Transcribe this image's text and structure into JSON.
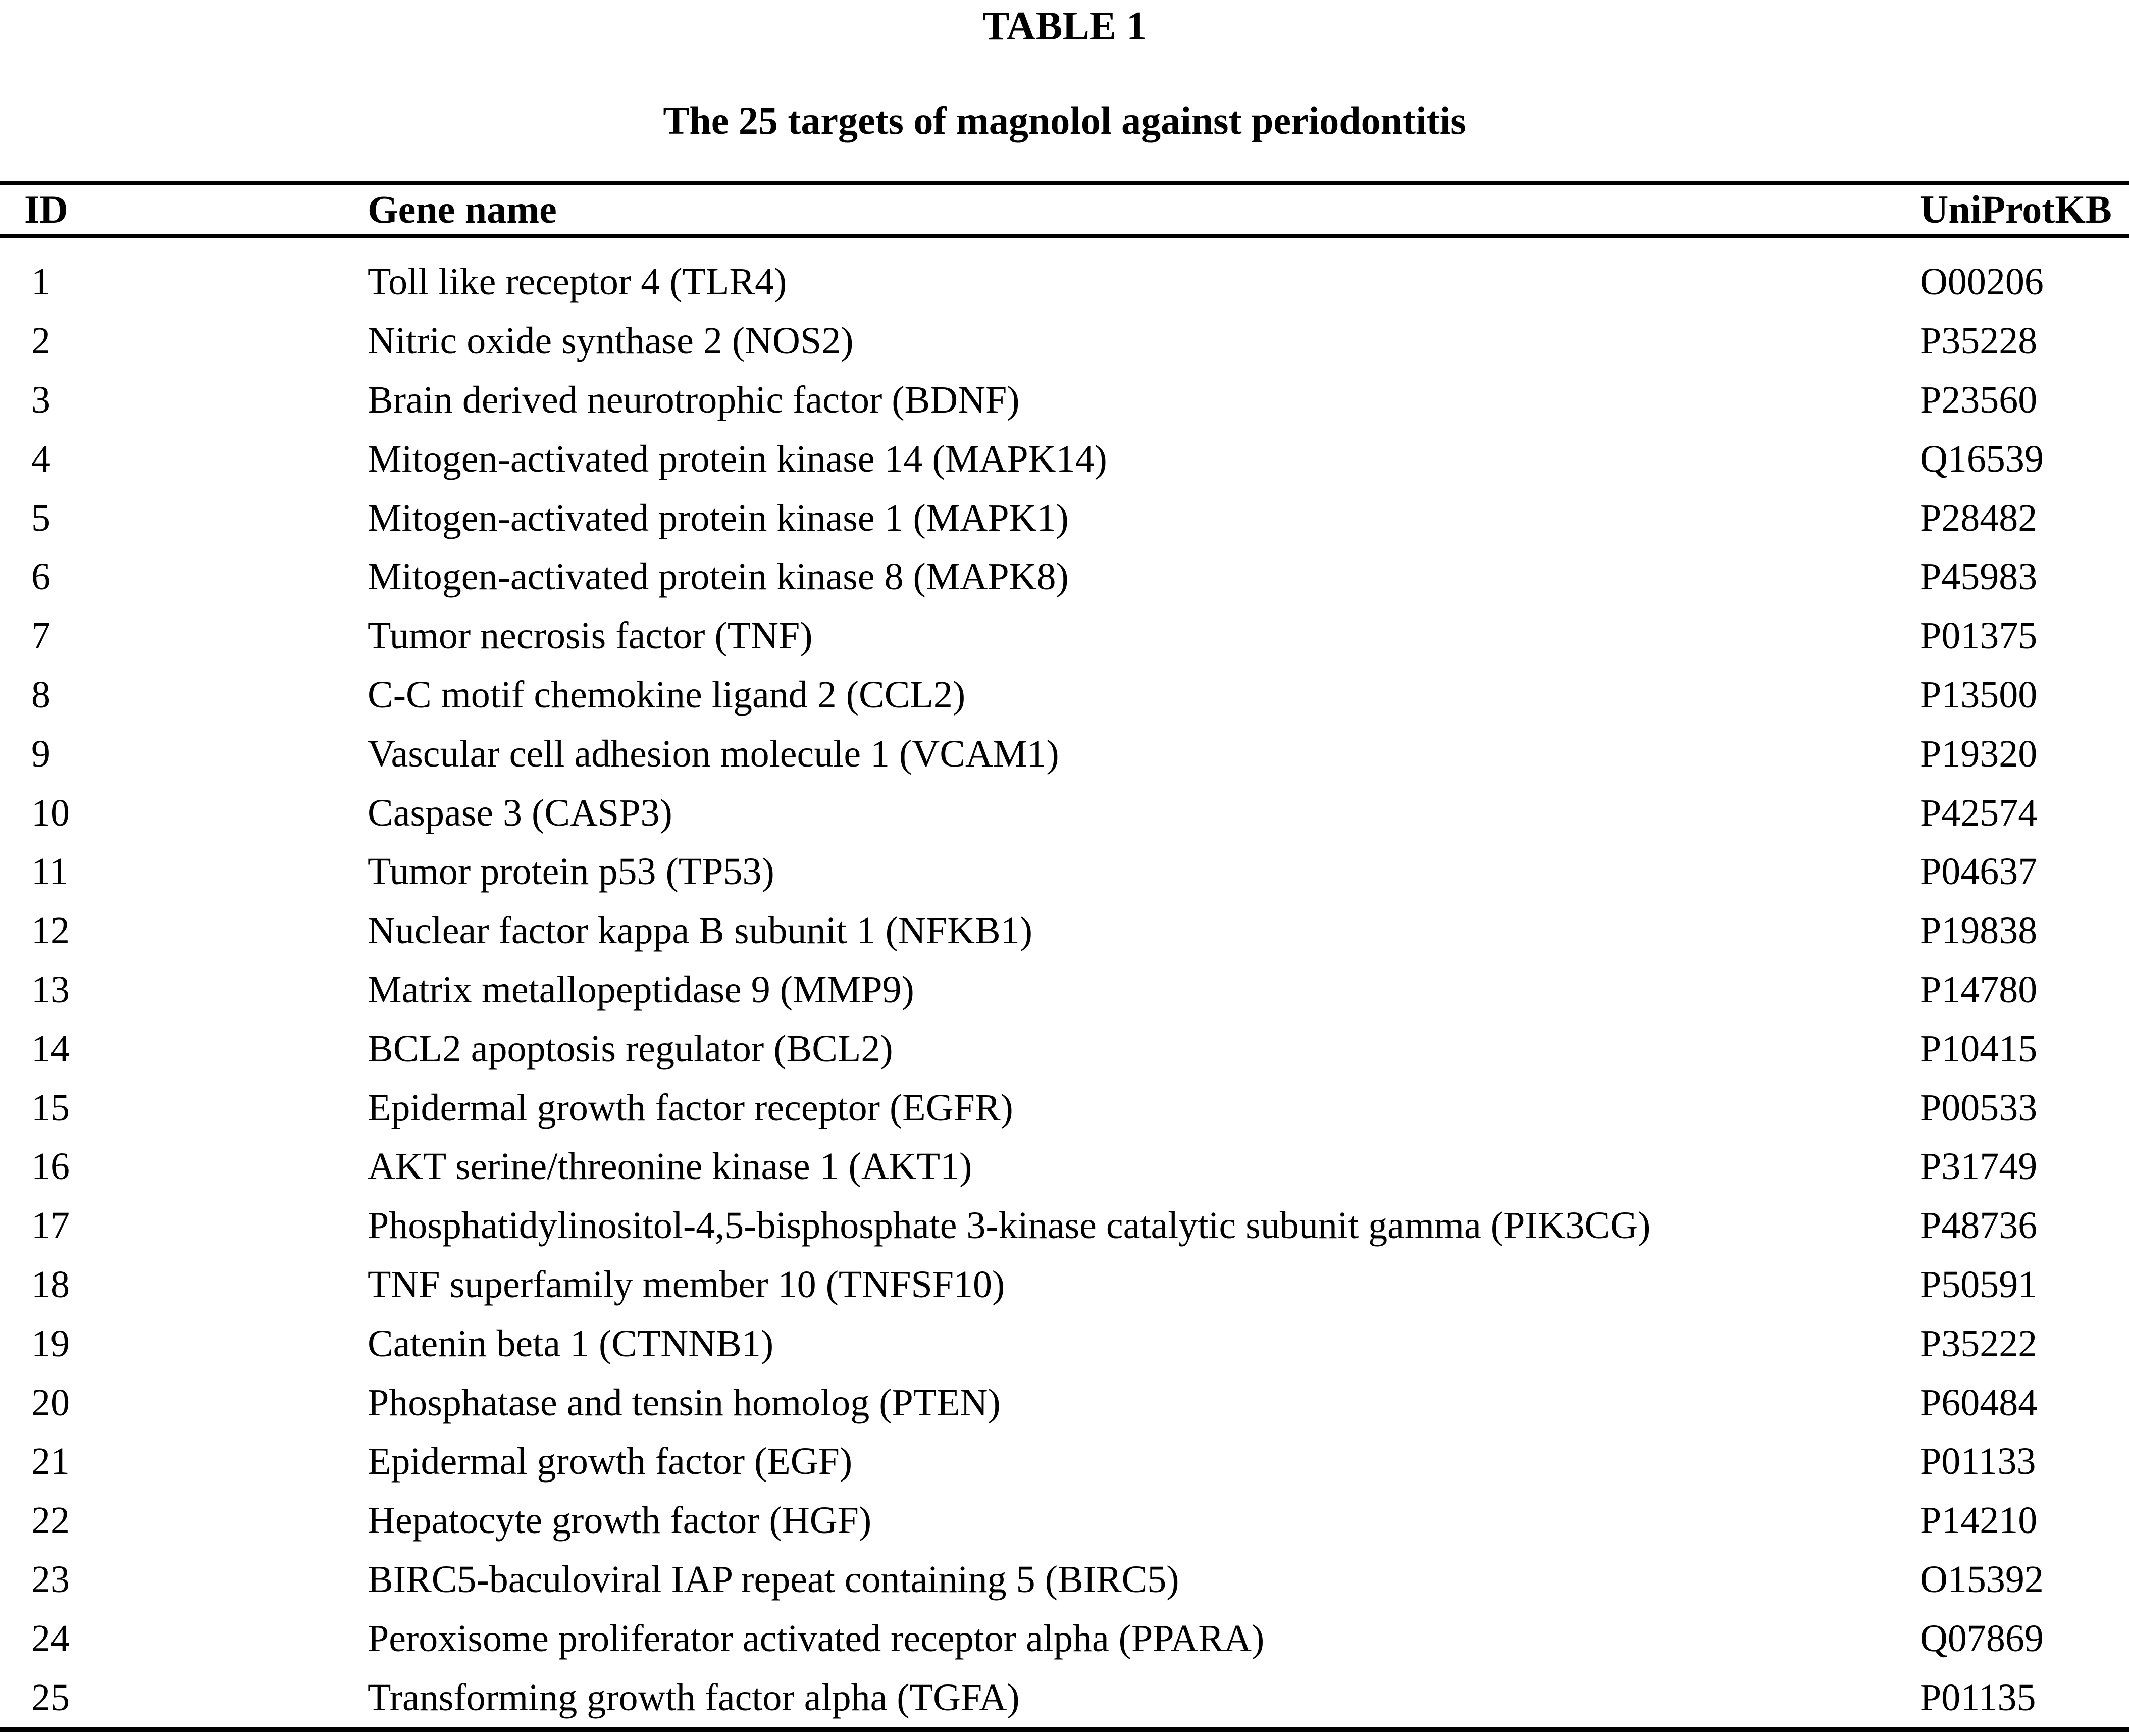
{
  "table": {
    "label": "TABLE 1",
    "caption": "The 25 targets of magnolol against periodontitis",
    "columns": [
      "ID",
      "Gene name",
      "UniProtKB"
    ],
    "rows": [
      {
        "id": "1",
        "gene": "Toll like receptor 4 (TLR4)",
        "uniprot": "O00206"
      },
      {
        "id": "2",
        "gene": "Nitric oxide synthase 2 (NOS2)",
        "uniprot": "P35228"
      },
      {
        "id": "3",
        "gene": "Brain derived neurotrophic factor (BDNF)",
        "uniprot": "P23560"
      },
      {
        "id": "4",
        "gene": "Mitogen-activated protein kinase 14 (MAPK14)",
        "uniprot": "Q16539"
      },
      {
        "id": "5",
        "gene": "Mitogen-activated protein kinase 1 (MAPK1)",
        "uniprot": "P28482"
      },
      {
        "id": "6",
        "gene": "Mitogen-activated protein kinase 8 (MAPK8)",
        "uniprot": "P45983"
      },
      {
        "id": "7",
        "gene": "Tumor necrosis factor (TNF)",
        "uniprot": "P01375"
      },
      {
        "id": "8",
        "gene": "C-C motif chemokine ligand 2 (CCL2)",
        "uniprot": "P13500"
      },
      {
        "id": "9",
        "gene": "Vascular cell adhesion molecule 1 (VCAM1)",
        "uniprot": "P19320"
      },
      {
        "id": "10",
        "gene": "Caspase 3 (CASP3)",
        "uniprot": "P42574"
      },
      {
        "id": "11",
        "gene": "Tumor protein p53 (TP53)",
        "uniprot": "P04637"
      },
      {
        "id": "12",
        "gene": "Nuclear factor kappa B subunit 1 (NFKB1)",
        "uniprot": "P19838"
      },
      {
        "id": "13",
        "gene": "Matrix metallopeptidase 9 (MMP9)",
        "uniprot": "P14780"
      },
      {
        "id": "14",
        "gene": "BCL2 apoptosis regulator (BCL2)",
        "uniprot": "P10415"
      },
      {
        "id": "15",
        "gene": "Epidermal growth factor receptor (EGFR)",
        "uniprot": "P00533"
      },
      {
        "id": "16",
        "gene": "AKT serine/threonine kinase 1 (AKT1)",
        "uniprot": "P31749"
      },
      {
        "id": "17",
        "gene": "Phosphatidylinositol-4,5-bisphosphate 3-kinase catalytic subunit gamma (PIK3CG)",
        "uniprot": "P48736"
      },
      {
        "id": "18",
        "gene": "TNF superfamily member 10 (TNFSF10)",
        "uniprot": "P50591"
      },
      {
        "id": "19",
        "gene": "Catenin beta 1 (CTNNB1)",
        "uniprot": "P35222"
      },
      {
        "id": "20",
        "gene": "Phosphatase and tensin homolog (PTEN)",
        "uniprot": "P60484"
      },
      {
        "id": "21",
        "gene": "Epidermal growth factor (EGF)",
        "uniprot": "P01133"
      },
      {
        "id": "22",
        "gene": "Hepatocyte growth factor (HGF)",
        "uniprot": "P14210"
      },
      {
        "id": "23",
        "gene": "BIRC5-baculoviral IAP repeat containing 5 (BIRC5)",
        "uniprot": "O15392"
      },
      {
        "id": "24",
        "gene": "Peroxisome proliferator activated receptor alpha (PPARA)",
        "uniprot": "Q07869"
      },
      {
        "id": "25",
        "gene": "Transforming growth factor alpha (TGFA)",
        "uniprot": "P01135"
      }
    ],
    "colors": {
      "text": "#000000",
      "background": "#ffffff",
      "rule": "#000000"
    }
  }
}
